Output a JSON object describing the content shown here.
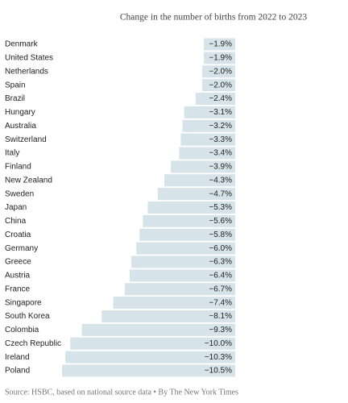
{
  "chart_data": {
    "type": "bar",
    "orientation": "horizontal",
    "title": "Change in the number of births from 2022 to 2023",
    "categories": [
      "Denmark",
      "United States",
      "Netherlands",
      "Spain",
      "Brazil",
      "Hungary",
      "Australia",
      "Switzerland",
      "Italy",
      "Finland",
      "New Zealand",
      "Sweden",
      "Japan",
      "China",
      "Croatia",
      "Germany",
      "Greece",
      "Austria",
      "France",
      "Singapore",
      "South Korea",
      "Colombia",
      "Czech Republic",
      "Ireland",
      "Poland"
    ],
    "values": [
      -1.9,
      -1.9,
      -2.0,
      -2.0,
      -2.4,
      -3.1,
      -3.2,
      -3.3,
      -3.4,
      -3.9,
      -4.3,
      -4.7,
      -5.3,
      -5.6,
      -5.8,
      -6.0,
      -6.3,
      -6.4,
      -6.7,
      -7.4,
      -8.1,
      -9.3,
      -10.0,
      -10.3,
      -10.5
    ],
    "value_labels": [
      "−1.9%",
      "−1.9%",
      "−2.0%",
      "−2.0%",
      "−2.4%",
      "−3.1%",
      "−3.2%",
      "−3.3%",
      "−3.4%",
      "−3.9%",
      "−4.3%",
      "−4.7%",
      "−5.3%",
      "−5.6%",
      "−5.8%",
      "−6.0%",
      "−6.3%",
      "−6.4%",
      "−6.7%",
      "−7.4%",
      "−8.1%",
      "−9.3%",
      "−10.0%",
      "−10.3%",
      "−10.5%"
    ],
    "color": "#d6e4e9",
    "source": "Source: HSBC, based on national source data • By The New York Times"
  }
}
